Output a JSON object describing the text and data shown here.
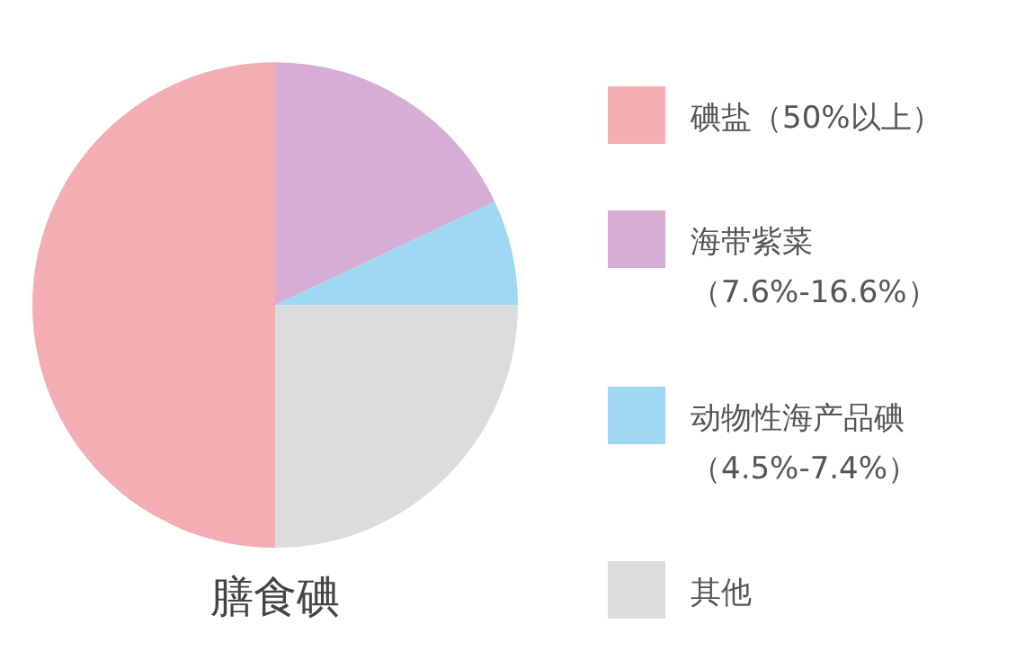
{
  "chart_data": {
    "type": "pie",
    "title": "膳食碘",
    "categories": [
      "碘盐（50%以上）",
      "海带紫菜（7.6%-16.6%）",
      "动物性海产品碘（4.5%-7.4%）",
      "其他"
    ],
    "values": [
      50,
      18,
      7,
      25
    ],
    "colors": [
      "#f2aeb2",
      "#d6aed5",
      "#9ed8f2",
      "#dcdcdf"
    ],
    "legend": "right"
  }
}
